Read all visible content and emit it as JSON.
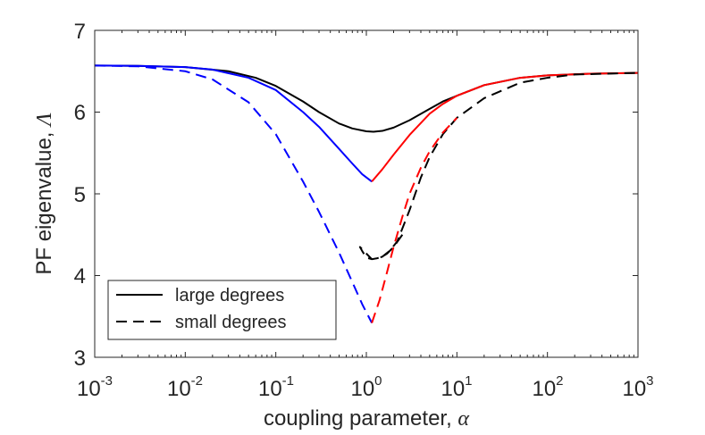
{
  "chart_data": {
    "type": "line",
    "title": "",
    "xscale": "log",
    "xlim": [
      0.001,
      1000
    ],
    "ylim": [
      3,
      7
    ],
    "xlabel": "coupling parameter, ",
    "xlabel_symbol": "α",
    "ylabel": "PF eigenvalue, ",
    "ylabel_symbol": "Λ",
    "x_ticks": [
      {
        "base": "10",
        "exp": "-3",
        "value": 0.001
      },
      {
        "base": "10",
        "exp": "-2",
        "value": 0.01
      },
      {
        "base": "10",
        "exp": "-1",
        "value": 0.1
      },
      {
        "base": "10",
        "exp": "0",
        "value": 1
      },
      {
        "base": "10",
        "exp": "1",
        "value": 10
      },
      {
        "base": "10",
        "exp": "2",
        "value": 100
      },
      {
        "base": "10",
        "exp": "3",
        "value": 1000
      }
    ],
    "y_ticks": [
      "3",
      "4",
      "5",
      "6",
      "7"
    ],
    "grid": false,
    "legend": {
      "placement": "bottom-left",
      "entries": [
        {
          "label": "large degrees",
          "style": "solid",
          "color": "#000000"
        },
        {
          "label": "small degrees",
          "style": "dashed",
          "color": "#000000"
        }
      ]
    },
    "series": [
      {
        "name": "large degrees (overall)",
        "color": "#000000",
        "style": "solid",
        "points": [
          [
            0.001,
            6.57
          ],
          [
            0.003,
            6.565
          ],
          [
            0.01,
            6.55
          ],
          [
            0.03,
            6.5
          ],
          [
            0.06,
            6.42
          ],
          [
            0.1,
            6.32
          ],
          [
            0.2,
            6.13
          ],
          [
            0.3,
            6.0
          ],
          [
            0.5,
            5.86
          ],
          [
            0.7,
            5.8
          ],
          [
            1.0,
            5.765
          ],
          [
            1.2,
            5.76
          ],
          [
            1.5,
            5.77
          ],
          [
            2.0,
            5.81
          ],
          [
            3.0,
            5.9
          ],
          [
            5.0,
            6.04
          ],
          [
            7.0,
            6.13
          ],
          [
            10,
            6.2
          ],
          [
            20,
            6.33
          ],
          [
            50,
            6.42
          ],
          [
            100,
            6.45
          ],
          [
            300,
            6.47
          ],
          [
            1000,
            6.48
          ]
        ]
      },
      {
        "name": "large degrees (branch 1)",
        "color": "#0000ff",
        "style": "solid",
        "points": [
          [
            0.001,
            6.57
          ],
          [
            0.003,
            6.565
          ],
          [
            0.01,
            6.55
          ],
          [
            0.02,
            6.52
          ],
          [
            0.05,
            6.42
          ],
          [
            0.1,
            6.27
          ],
          [
            0.2,
            6.0
          ],
          [
            0.3,
            5.82
          ],
          [
            0.5,
            5.55
          ],
          [
            0.7,
            5.37
          ],
          [
            0.9,
            5.24
          ],
          [
            1.15,
            5.15
          ]
        ]
      },
      {
        "name": "large degrees (branch 2)",
        "color": "#ff0000",
        "style": "solid",
        "points": [
          [
            1.15,
            5.15
          ],
          [
            1.5,
            5.3
          ],
          [
            2.0,
            5.48
          ],
          [
            3.0,
            5.72
          ],
          [
            5.0,
            5.98
          ],
          [
            7.0,
            6.1
          ],
          [
            10,
            6.2
          ],
          [
            20,
            6.33
          ],
          [
            50,
            6.42
          ],
          [
            100,
            6.45
          ],
          [
            300,
            6.47
          ],
          [
            1000,
            6.48
          ]
        ]
      },
      {
        "name": "small degrees (overall)",
        "color": "#000000",
        "style": "dashed",
        "points": [
          [
            2.5,
            4.5
          ],
          [
            2.0,
            4.35
          ],
          [
            1.7,
            4.27
          ],
          [
            1.5,
            4.23
          ],
          [
            1.3,
            4.21
          ],
          [
            1.15,
            4.2
          ],
          [
            1.0,
            4.22
          ],
          [
            0.9,
            4.3
          ],
          [
            0.85,
            4.35
          ],
          [
            1.15,
            4.2
          ],
          [
            1.3,
            4.21
          ],
          [
            1.5,
            4.23
          ],
          [
            1.8,
            4.3
          ],
          [
            2.2,
            4.42
          ],
          [
            3.0,
            4.8
          ],
          [
            4.0,
            5.2
          ],
          [
            5.0,
            5.45
          ],
          [
            7.0,
            5.73
          ],
          [
            10,
            5.93
          ],
          [
            20,
            6.17
          ],
          [
            50,
            6.36
          ],
          [
            100,
            6.42
          ],
          [
            200,
            6.46
          ],
          [
            1000,
            6.48
          ]
        ]
      },
      {
        "name": "small degrees (branch 1)",
        "color": "#0000ff",
        "style": "dashed",
        "points": [
          [
            0.001,
            6.57
          ],
          [
            0.003,
            6.56
          ],
          [
            0.01,
            6.5
          ],
          [
            0.02,
            6.4
          ],
          [
            0.05,
            6.12
          ],
          [
            0.1,
            5.73
          ],
          [
            0.2,
            5.15
          ],
          [
            0.3,
            4.78
          ],
          [
            0.5,
            4.28
          ],
          [
            0.7,
            3.92
          ],
          [
            0.9,
            3.65
          ],
          [
            1.15,
            3.42
          ]
        ]
      },
      {
        "name": "small degrees (branch 2)",
        "color": "#ff0000",
        "style": "dashed",
        "points": [
          [
            1.15,
            3.42
          ],
          [
            1.4,
            3.7
          ],
          [
            1.7,
            4.05
          ],
          [
            2.0,
            4.35
          ],
          [
            2.5,
            4.72
          ],
          [
            3.0,
            5.0
          ],
          [
            4.0,
            5.32
          ],
          [
            5.0,
            5.52
          ],
          [
            7.0,
            5.75
          ],
          [
            10,
            5.93
          ]
        ]
      }
    ]
  }
}
